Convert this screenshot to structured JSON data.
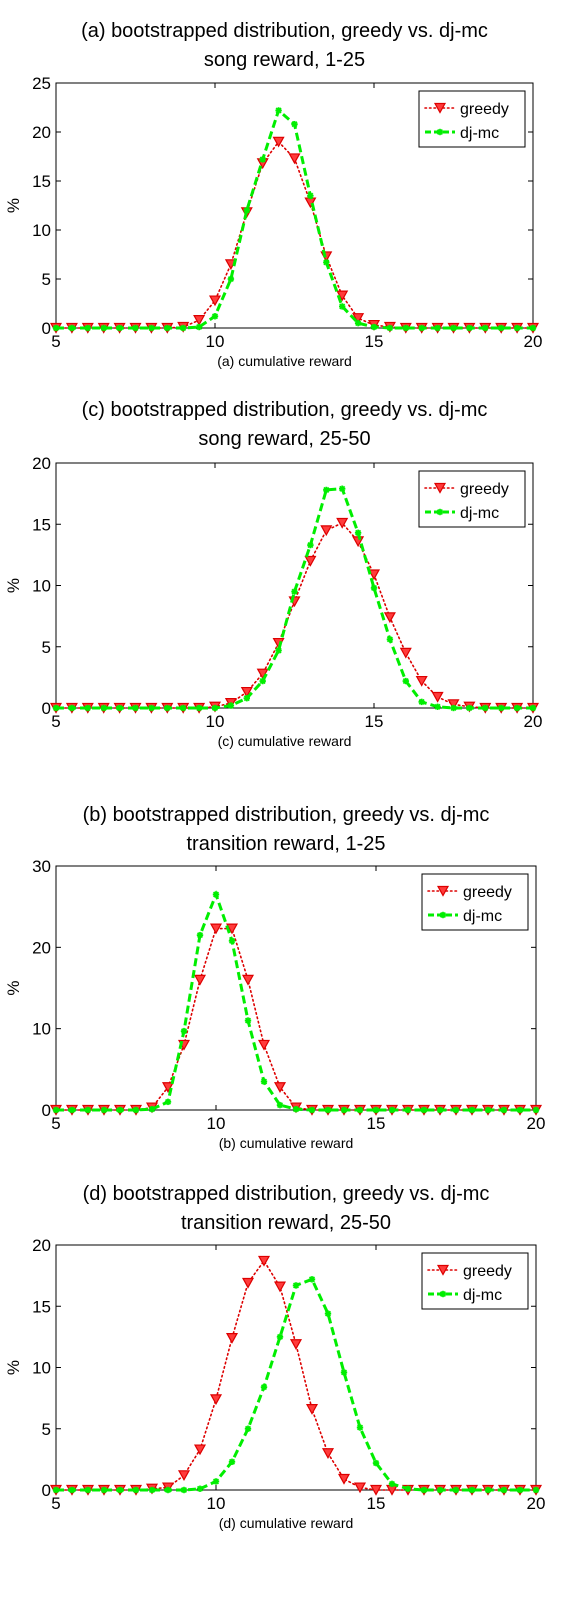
{
  "colors": {
    "greedy": "#dd0000",
    "greedy_fill": "#ff3b3b",
    "dj_mc": "#00ee00",
    "axis": "#000000",
    "background": "#ffffff"
  },
  "chart_data": [
    {
      "type": "line",
      "title": [
        "(a) bootstrapped distribution, greedy vs. dj-mc",
        "song reward, 1-25"
      ],
      "xlabel": "(a) cumulative reward",
      "ylabel": "%",
      "xlim": [
        5,
        20
      ],
      "ylim": [
        0,
        25
      ],
      "xticks": [
        5,
        10,
        15,
        20
      ],
      "yticks": [
        0,
        5,
        10,
        15,
        20,
        25
      ],
      "grid": false,
      "legend": "top-right",
      "x": [
        5,
        5.5,
        6,
        6.5,
        7,
        7.5,
        8,
        8.5,
        9,
        9.5,
        10,
        10.5,
        11,
        11.5,
        12,
        12.5,
        13,
        13.5,
        14,
        14.5,
        15,
        15.5,
        16,
        16.5,
        17,
        17.5,
        18,
        18.5,
        19,
        19.5,
        20
      ],
      "series": [
        {
          "name": "greedy",
          "marker": "triangle-down",
          "style": "dotted",
          "values": [
            0,
            0,
            0,
            0,
            0,
            0,
            0,
            0,
            0.1,
            0.8,
            2.8,
            6.5,
            11.8,
            16.8,
            19.0,
            17.3,
            12.8,
            7.3,
            3.3,
            1.0,
            0.3,
            0.1,
            0,
            0,
            0,
            0,
            0,
            0,
            0,
            0,
            0
          ]
        },
        {
          "name": "dj-mc",
          "marker": "star",
          "style": "dashed",
          "values": [
            0,
            0,
            0,
            0,
            0,
            0,
            0,
            0,
            0,
            0.1,
            1.2,
            5.0,
            12.0,
            17.2,
            22.2,
            20.8,
            13.5,
            6.7,
            2.2,
            0.5,
            0.1,
            0,
            0,
            0,
            0,
            0,
            0,
            0,
            0,
            0,
            0
          ]
        }
      ]
    },
    {
      "type": "line",
      "title": [
        "(c) bootstrapped distribution, greedy vs. dj-mc",
        "song reward, 25-50"
      ],
      "xlabel": "(c) cumulative reward",
      "ylabel": "%",
      "xlim": [
        5,
        20
      ],
      "ylim": [
        0,
        20
      ],
      "xticks": [
        5,
        10,
        15,
        20
      ],
      "yticks": [
        0,
        5,
        10,
        15,
        20
      ],
      "grid": false,
      "legend": "top-right",
      "x": [
        5,
        5.5,
        6,
        6.5,
        7,
        7.5,
        8,
        8.5,
        9,
        9.5,
        10,
        10.5,
        11,
        11.5,
        12,
        12.5,
        13,
        13.5,
        14,
        14.5,
        15,
        15.5,
        16,
        16.5,
        17,
        17.5,
        18,
        18.5,
        19,
        19.5,
        20
      ],
      "series": [
        {
          "name": "greedy",
          "marker": "triangle-down",
          "style": "dotted",
          "values": [
            0,
            0,
            0,
            0,
            0,
            0,
            0,
            0,
            0,
            0,
            0.1,
            0.4,
            1.3,
            2.8,
            5.3,
            8.7,
            12.0,
            14.5,
            15.1,
            13.6,
            10.9,
            7.4,
            4.5,
            2.2,
            0.9,
            0.3,
            0.1,
            0,
            0,
            0,
            0
          ]
        },
        {
          "name": "dj-mc",
          "marker": "star",
          "style": "dashed",
          "values": [
            0,
            0,
            0,
            0,
            0,
            0,
            0,
            0,
            0,
            0,
            0,
            0.2,
            0.8,
            2.2,
            4.7,
            9.5,
            13.3,
            17.8,
            17.9,
            14.3,
            9.8,
            5.6,
            2.2,
            0.5,
            0.1,
            0,
            0,
            0,
            0,
            0,
            0
          ]
        }
      ]
    },
    {
      "type": "line",
      "title": [
        "(b) bootstrapped distribution, greedy vs. dj-mc",
        "transition reward, 1-25"
      ],
      "xlabel": "(b) cumulative reward",
      "ylabel": "%",
      "xlim": [
        5,
        20
      ],
      "ylim": [
        0,
        30
      ],
      "xticks": [
        5,
        10,
        15,
        20
      ],
      "yticks": [
        0,
        10,
        20,
        30
      ],
      "grid": false,
      "legend": "top-right",
      "x": [
        5,
        5.5,
        6,
        6.5,
        7,
        7.5,
        8,
        8.5,
        9,
        9.5,
        10,
        10.5,
        11,
        11.5,
        12,
        12.5,
        13,
        13.5,
        14,
        14.5,
        15,
        15.5,
        16,
        16.5,
        17,
        17.5,
        18,
        18.5,
        19,
        19.5,
        20
      ],
      "series": [
        {
          "name": "greedy",
          "marker": "triangle-down",
          "style": "dotted",
          "values": [
            0,
            0,
            0,
            0,
            0,
            0,
            0.3,
            2.8,
            8.0,
            16.0,
            22.3,
            22.3,
            16.0,
            8.0,
            2.8,
            0.3,
            0,
            0,
            0,
            0,
            0,
            0,
            0,
            0,
            0,
            0,
            0,
            0,
            0,
            0,
            0
          ]
        },
        {
          "name": "dj-mc",
          "marker": "star",
          "style": "dashed",
          "values": [
            0,
            0,
            0,
            0,
            0,
            0,
            0.1,
            1.0,
            9.7,
            21.5,
            26.5,
            20.8,
            11.0,
            3.5,
            0.6,
            0.1,
            0,
            0,
            0,
            0,
            0,
            0,
            0,
            0,
            0,
            0,
            0,
            0,
            0,
            0,
            0
          ]
        }
      ]
    },
    {
      "type": "line",
      "title": [
        "(d) bootstrapped distribution, greedy vs. dj-mc",
        "transition reward, 25-50"
      ],
      "xlabel": "(d) cumulative reward",
      "ylabel": "%",
      "xlim": [
        5,
        20
      ],
      "ylim": [
        0,
        20
      ],
      "xticks": [
        5,
        10,
        15,
        20
      ],
      "yticks": [
        0,
        5,
        10,
        15,
        20
      ],
      "grid": false,
      "legend": "top-right",
      "x": [
        5,
        5.5,
        6,
        6.5,
        7,
        7.5,
        8,
        8.5,
        9,
        9.5,
        10,
        10.5,
        11,
        11.5,
        12,
        12.5,
        13,
        13.5,
        14,
        14.5,
        15,
        15.5,
        16,
        16.5,
        17,
        17.5,
        18,
        18.5,
        19,
        19.5,
        20
      ],
      "series": [
        {
          "name": "greedy",
          "marker": "triangle-down",
          "style": "dotted",
          "values": [
            0,
            0,
            0,
            0,
            0,
            0,
            0.1,
            0.2,
            1.2,
            3.3,
            7.4,
            12.4,
            16.9,
            18.7,
            16.6,
            11.9,
            6.6,
            3.0,
            0.9,
            0.2,
            0,
            0,
            0,
            0,
            0,
            0,
            0,
            0,
            0,
            0,
            0
          ]
        },
        {
          "name": "dj-mc",
          "marker": "star",
          "style": "dashed",
          "values": [
            0,
            0,
            0,
            0,
            0,
            0,
            0,
            0,
            0,
            0.1,
            0.7,
            2.3,
            5.0,
            8.4,
            12.5,
            16.7,
            17.2,
            14.4,
            9.6,
            5.1,
            2.2,
            0.5,
            0.1,
            0,
            0,
            0,
            0,
            0,
            0,
            0,
            0
          ]
        }
      ]
    }
  ]
}
